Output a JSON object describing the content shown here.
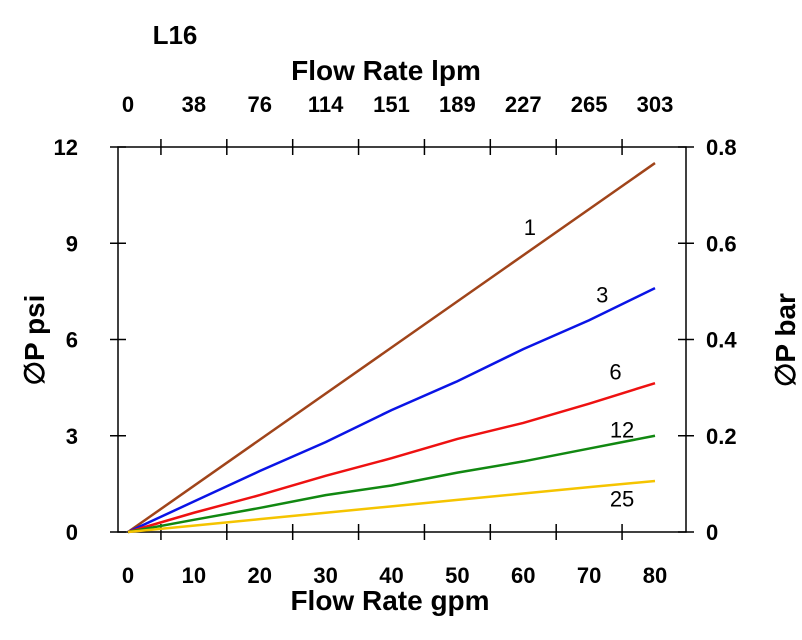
{
  "chart_data": {
    "type": "line",
    "title": "L16",
    "xlabel": "Flow Rate gpm",
    "x2label": "Flow Rate lpm",
    "ylabel": "∅P psi",
    "y2label": "∅P bar",
    "xlim": [
      0,
      80
    ],
    "ylim": [
      0,
      12
    ],
    "x_ticks": [
      "0",
      "10",
      "20",
      "30",
      "40",
      "50",
      "60",
      "70",
      "80"
    ],
    "x2_ticks": [
      "0",
      "38",
      "76",
      "114",
      "151",
      "189",
      "227",
      "265",
      "303"
    ],
    "y_ticks": [
      "0",
      "3",
      "6",
      "9",
      "12"
    ],
    "y2_ticks": [
      "0",
      "0.2",
      "0.4",
      "0.6",
      "0.8"
    ],
    "grid": false,
    "series": [
      {
        "name": "1",
        "color": "#a0441a",
        "x": [
          0,
          80
        ],
        "y": [
          0,
          11.5
        ],
        "label_at": [
          61,
          9.5
        ]
      },
      {
        "name": "3",
        "color": "#0a14e6",
        "x": [
          0,
          10,
          20,
          30,
          40,
          50,
          60,
          70,
          80
        ],
        "y": [
          0,
          0.95,
          1.9,
          2.8,
          3.8,
          4.7,
          5.7,
          6.6,
          7.6
        ],
        "label_at": [
          72,
          7.4
        ]
      },
      {
        "name": "6",
        "color": "#ee1111",
        "x": [
          0,
          10,
          20,
          30,
          40,
          50,
          60,
          70,
          80
        ],
        "y": [
          0,
          0.6,
          1.15,
          1.75,
          2.3,
          2.9,
          3.4,
          4.0,
          4.64
        ],
        "label_at": [
          74,
          5.0
        ]
      },
      {
        "name": "12",
        "color": "#118811",
        "x": [
          0,
          10,
          20,
          30,
          40,
          50,
          60,
          70,
          80
        ],
        "y": [
          0,
          0.38,
          0.75,
          1.15,
          1.45,
          1.85,
          2.2,
          2.6,
          3.0
        ],
        "label_at": [
          75,
          3.2
        ]
      },
      {
        "name": "25",
        "color": "#f5c400",
        "x": [
          0,
          10,
          20,
          30,
          40,
          50,
          60,
          70,
          80
        ],
        "y": [
          0,
          0.2,
          0.4,
          0.6,
          0.8,
          1.0,
          1.2,
          1.4,
          1.59
        ],
        "label_at": [
          75,
          1.05
        ]
      }
    ]
  }
}
